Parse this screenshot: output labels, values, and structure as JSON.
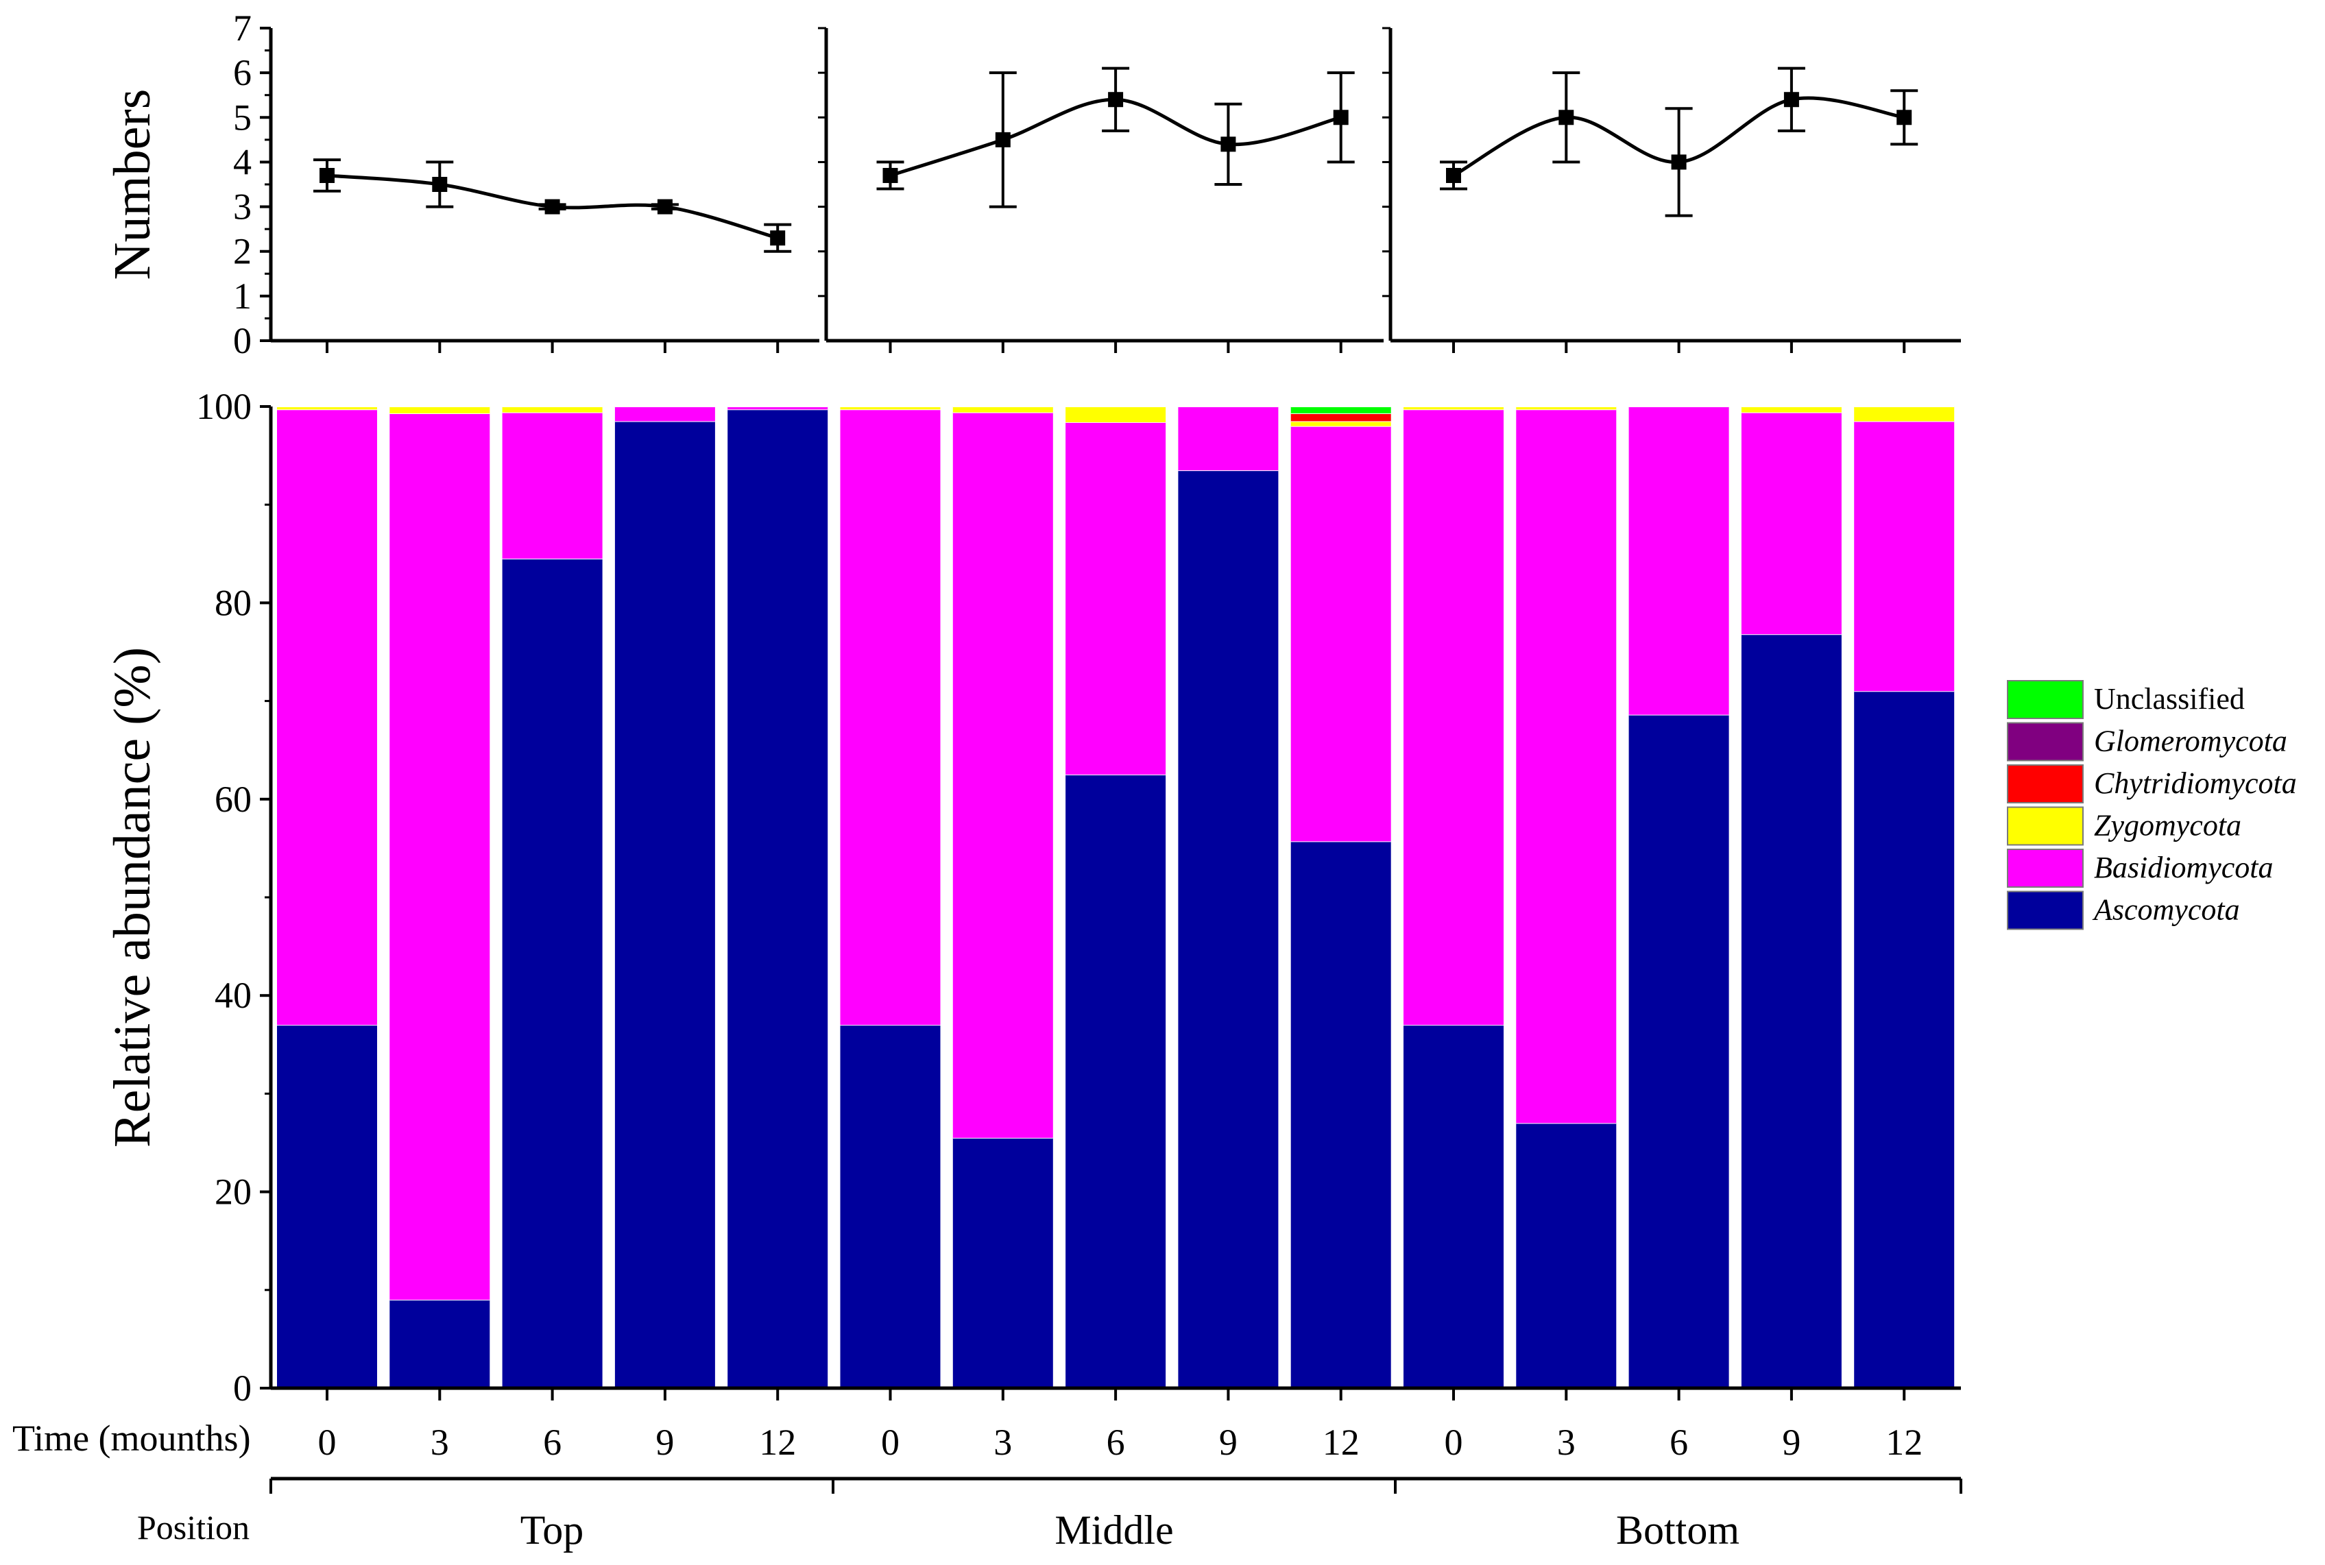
{
  "chart_data": [
    {
      "type": "line",
      "panel": "top",
      "ylabel": "Numbers",
      "ylim": [
        0,
        7
      ],
      "yticks": [
        "0",
        "1",
        "2",
        "3",
        "4",
        "5",
        "6",
        "7"
      ],
      "categories": [
        "0",
        "3",
        "6",
        "9",
        "12"
      ],
      "groups": [
        {
          "name": "Top",
          "values": [
            3.7,
            3.5,
            3.0,
            3.0,
            2.3
          ],
          "errors": [
            0.35,
            0.5,
            0.05,
            0.05,
            0.3
          ]
        },
        {
          "name": "Middle",
          "values": [
            3.7,
            4.5,
            5.4,
            4.4,
            5.0
          ],
          "errors": [
            0.3,
            1.5,
            0.7,
            0.9,
            1.0
          ]
        },
        {
          "name": "Bottom",
          "values": [
            3.7,
            5.0,
            4.0,
            5.4,
            5.0
          ],
          "errors": [
            0.3,
            1.0,
            1.2,
            0.7,
            0.6
          ]
        }
      ]
    },
    {
      "type": "bar",
      "stacked": true,
      "panel": "bottom",
      "ylabel": "Relative abundance (%)",
      "ylim": [
        0,
        100
      ],
      "yticks": [
        "0",
        "20",
        "40",
        "60",
        "80",
        "100"
      ],
      "xrow_label": "Time (mounths)",
      "position_label": "Position",
      "categories": [
        "0",
        "3",
        "6",
        "9",
        "12",
        "0",
        "3",
        "6",
        "9",
        "12",
        "0",
        "3",
        "6",
        "9",
        "12"
      ],
      "groups": [
        "Top",
        "Middle",
        "Bottom"
      ],
      "series": [
        {
          "name": "Ascomycota",
          "color": "#00009c",
          "values": [
            37,
            9,
            84.5,
            98.5,
            99.7,
            37,
            25.5,
            62.5,
            93.5,
            55.7,
            37,
            27,
            68.6,
            76.8,
            71
          ]
        },
        {
          "name": "Basidiomycota",
          "color": "#ff00ff",
          "values": [
            62.7,
            90.3,
            14.9,
            1.5,
            0.3,
            62.7,
            73.9,
            35.9,
            6.5,
            42.3,
            62.7,
            72.7,
            31.4,
            22.6,
            27.5
          ]
        },
        {
          "name": "Zygomycota",
          "color": "#ffff00",
          "values": [
            0.3,
            0.7,
            0.6,
            0,
            0,
            0.3,
            0.6,
            1.6,
            0,
            0.5,
            0.3,
            0.3,
            0,
            0.6,
            1.5
          ]
        },
        {
          "name": "Chytridiomycota",
          "color": "#ff0000",
          "values": [
            0,
            0,
            0,
            0,
            0,
            0,
            0,
            0,
            0,
            0.8,
            0,
            0,
            0,
            0,
            0
          ]
        },
        {
          "name": "Glomeromycota",
          "color": "#800080",
          "values": [
            0,
            0,
            0,
            0,
            0,
            0,
            0,
            0,
            0,
            0,
            0,
            0,
            0,
            0,
            0
          ]
        },
        {
          "name": "Unclassified",
          "color": "#00ff00",
          "values": [
            0,
            0,
            0,
            0,
            0,
            0,
            0,
            0,
            0,
            0.7,
            0,
            0,
            0,
            0,
            0
          ]
        }
      ],
      "legend": {
        "position": "right",
        "order": [
          "Unclassified",
          "Glomeromycota",
          "Chytridiomycota",
          "Zygomycota",
          "Basidiomycota",
          "Ascomycota"
        ],
        "italic": [
          false,
          true,
          true,
          true,
          true,
          true
        ]
      }
    }
  ]
}
